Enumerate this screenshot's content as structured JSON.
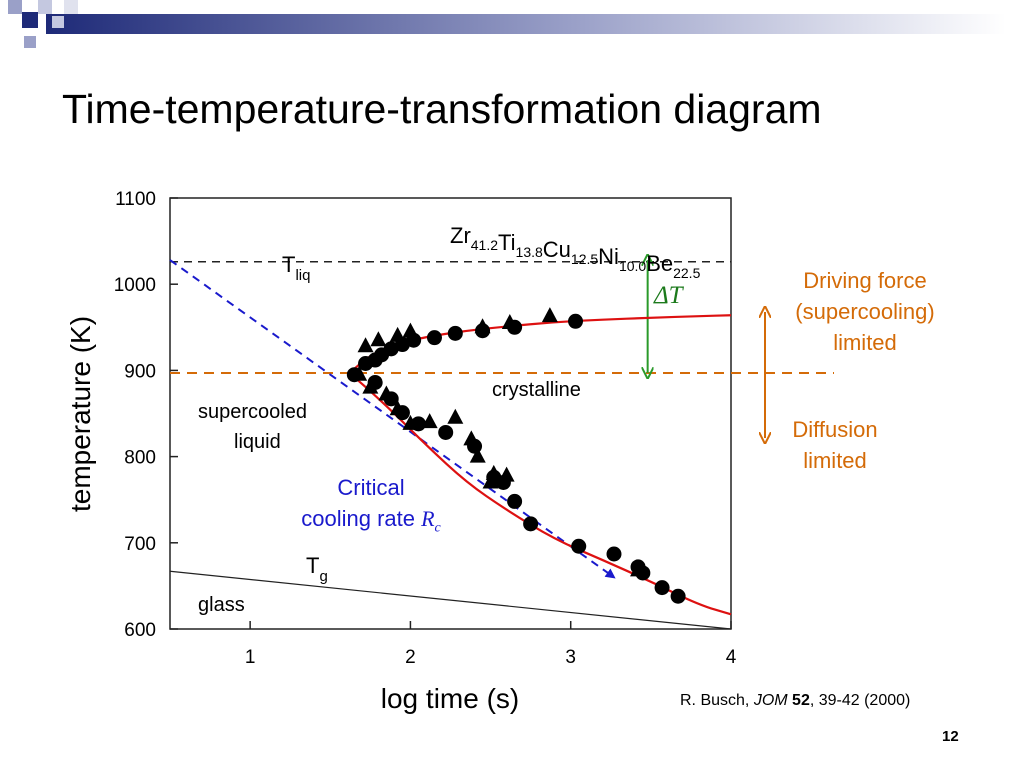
{
  "slide": {
    "title": "Time-temperature-transformation diagram",
    "page_number": "12",
    "citation": {
      "author": "R. Busch, ",
      "journal": "JOM",
      "volume": "52",
      "pages": ", 39-42 (2000)"
    }
  },
  "annotations": {
    "driving_line1": "Driving force",
    "driving_line2": "(supercooling)",
    "driving_line3": "limited",
    "diffusion_line1": "Diffusion",
    "diffusion_line2": "limited",
    "critical_line1": "Critical",
    "critical_line2": "cooling rate ",
    "critical_symbol": "R",
    "critical_subscript": "c",
    "delta_t": "ΔT"
  },
  "colors": {
    "red_curve": "#dd1111",
    "orange": "#d46b08",
    "blue": "#1a1acc",
    "green": "#2a9a2a",
    "deco_navy": "#1e2a78"
  },
  "chart_data": {
    "type": "scatter",
    "xlabel": "log time (s)",
    "ylabel": "temperature (K)",
    "xlim": [
      0.5,
      4
    ],
    "ylim": [
      600,
      1100
    ],
    "xticks": [
      1,
      2,
      3,
      4
    ],
    "yticks": [
      600,
      700,
      800,
      900,
      1000,
      1100
    ],
    "composition": {
      "elements": [
        {
          "el": "Zr",
          "sub": "41.2"
        },
        {
          "el": "Ti",
          "sub": "13.8"
        },
        {
          "el": "Cu",
          "sub": "12.5"
        },
        {
          "el": "Ni",
          "sub": "10.0"
        },
        {
          "el": "Be",
          "sub": "22.5"
        }
      ]
    },
    "region_labels": {
      "tliq_main": "T",
      "tliq_sub": "liq",
      "tg_main": "T",
      "tg_sub": "g",
      "supercooled_line1": "supercooled",
      "supercooled_line2": "liquid",
      "crystalline": "crystalline",
      "glass": "glass"
    },
    "liquidus_temperature": 1026,
    "glass_transition_line": {
      "x": [
        0.5,
        4
      ],
      "y": [
        667,
        600
      ]
    },
    "reference_temperature": 897,
    "driving_force_arrow": {
      "x": 3.48,
      "y": [
        1028,
        897
      ]
    },
    "critical_cooling_line": {
      "x": [
        0.5,
        3.27
      ],
      "y": [
        1028,
        660
      ]
    },
    "series": [
      {
        "marker": "circle",
        "points": [
          [
            1.72,
            908
          ],
          [
            1.78,
            912
          ],
          [
            1.82,
            918
          ],
          [
            1.88,
            925
          ],
          [
            1.95,
            930
          ],
          [
            2.02,
            935
          ],
          [
            2.15,
            938
          ],
          [
            2.28,
            943
          ],
          [
            2.45,
            946
          ],
          [
            2.65,
            950
          ],
          [
            3.03,
            957
          ],
          [
            1.65,
            895
          ],
          [
            1.78,
            886
          ],
          [
            1.88,
            867
          ],
          [
            1.95,
            851
          ],
          [
            2.05,
            838
          ],
          [
            2.22,
            828
          ],
          [
            2.4,
            812
          ],
          [
            2.52,
            776
          ],
          [
            2.58,
            770
          ],
          [
            2.65,
            748
          ],
          [
            2.75,
            722
          ],
          [
            3.05,
            696
          ],
          [
            3.27,
            687
          ],
          [
            3.42,
            672
          ],
          [
            3.45,
            665
          ],
          [
            3.57,
            648
          ],
          [
            3.67,
            638
          ]
        ]
      },
      {
        "marker": "triangle",
        "points": [
          [
            1.72,
            928
          ],
          [
            1.8,
            935
          ],
          [
            1.92,
            940
          ],
          [
            2.0,
            945
          ],
          [
            2.45,
            950
          ],
          [
            2.62,
            955
          ],
          [
            2.87,
            963
          ],
          [
            1.68,
            895
          ],
          [
            1.75,
            880
          ],
          [
            1.85,
            872
          ],
          [
            1.92,
            855
          ],
          [
            2.0,
            838
          ],
          [
            2.12,
            840
          ],
          [
            2.28,
            845
          ],
          [
            2.38,
            820
          ],
          [
            2.42,
            800
          ],
          [
            2.52,
            780
          ],
          [
            2.6,
            778
          ],
          [
            2.5,
            770
          ],
          [
            3.42,
            668
          ]
        ]
      }
    ],
    "fit_curves": [
      {
        "name": "upper",
        "x": [
          1.62,
          1.75,
          1.9,
          2.1,
          2.35,
          2.6,
          2.9,
          3.2,
          3.5,
          3.8,
          4.0
        ],
        "y": [
          897,
          918,
          930,
          939,
          946,
          951,
          956,
          959,
          961,
          963,
          964
        ]
      },
      {
        "name": "lower",
        "x": [
          1.62,
          1.75,
          1.9,
          2.1,
          2.35,
          2.6,
          2.9,
          3.2,
          3.5,
          3.8,
          4.0
        ],
        "y": [
          897,
          876,
          850,
          813,
          770,
          738,
          704,
          680,
          655,
          628,
          617
        ]
      }
    ]
  }
}
